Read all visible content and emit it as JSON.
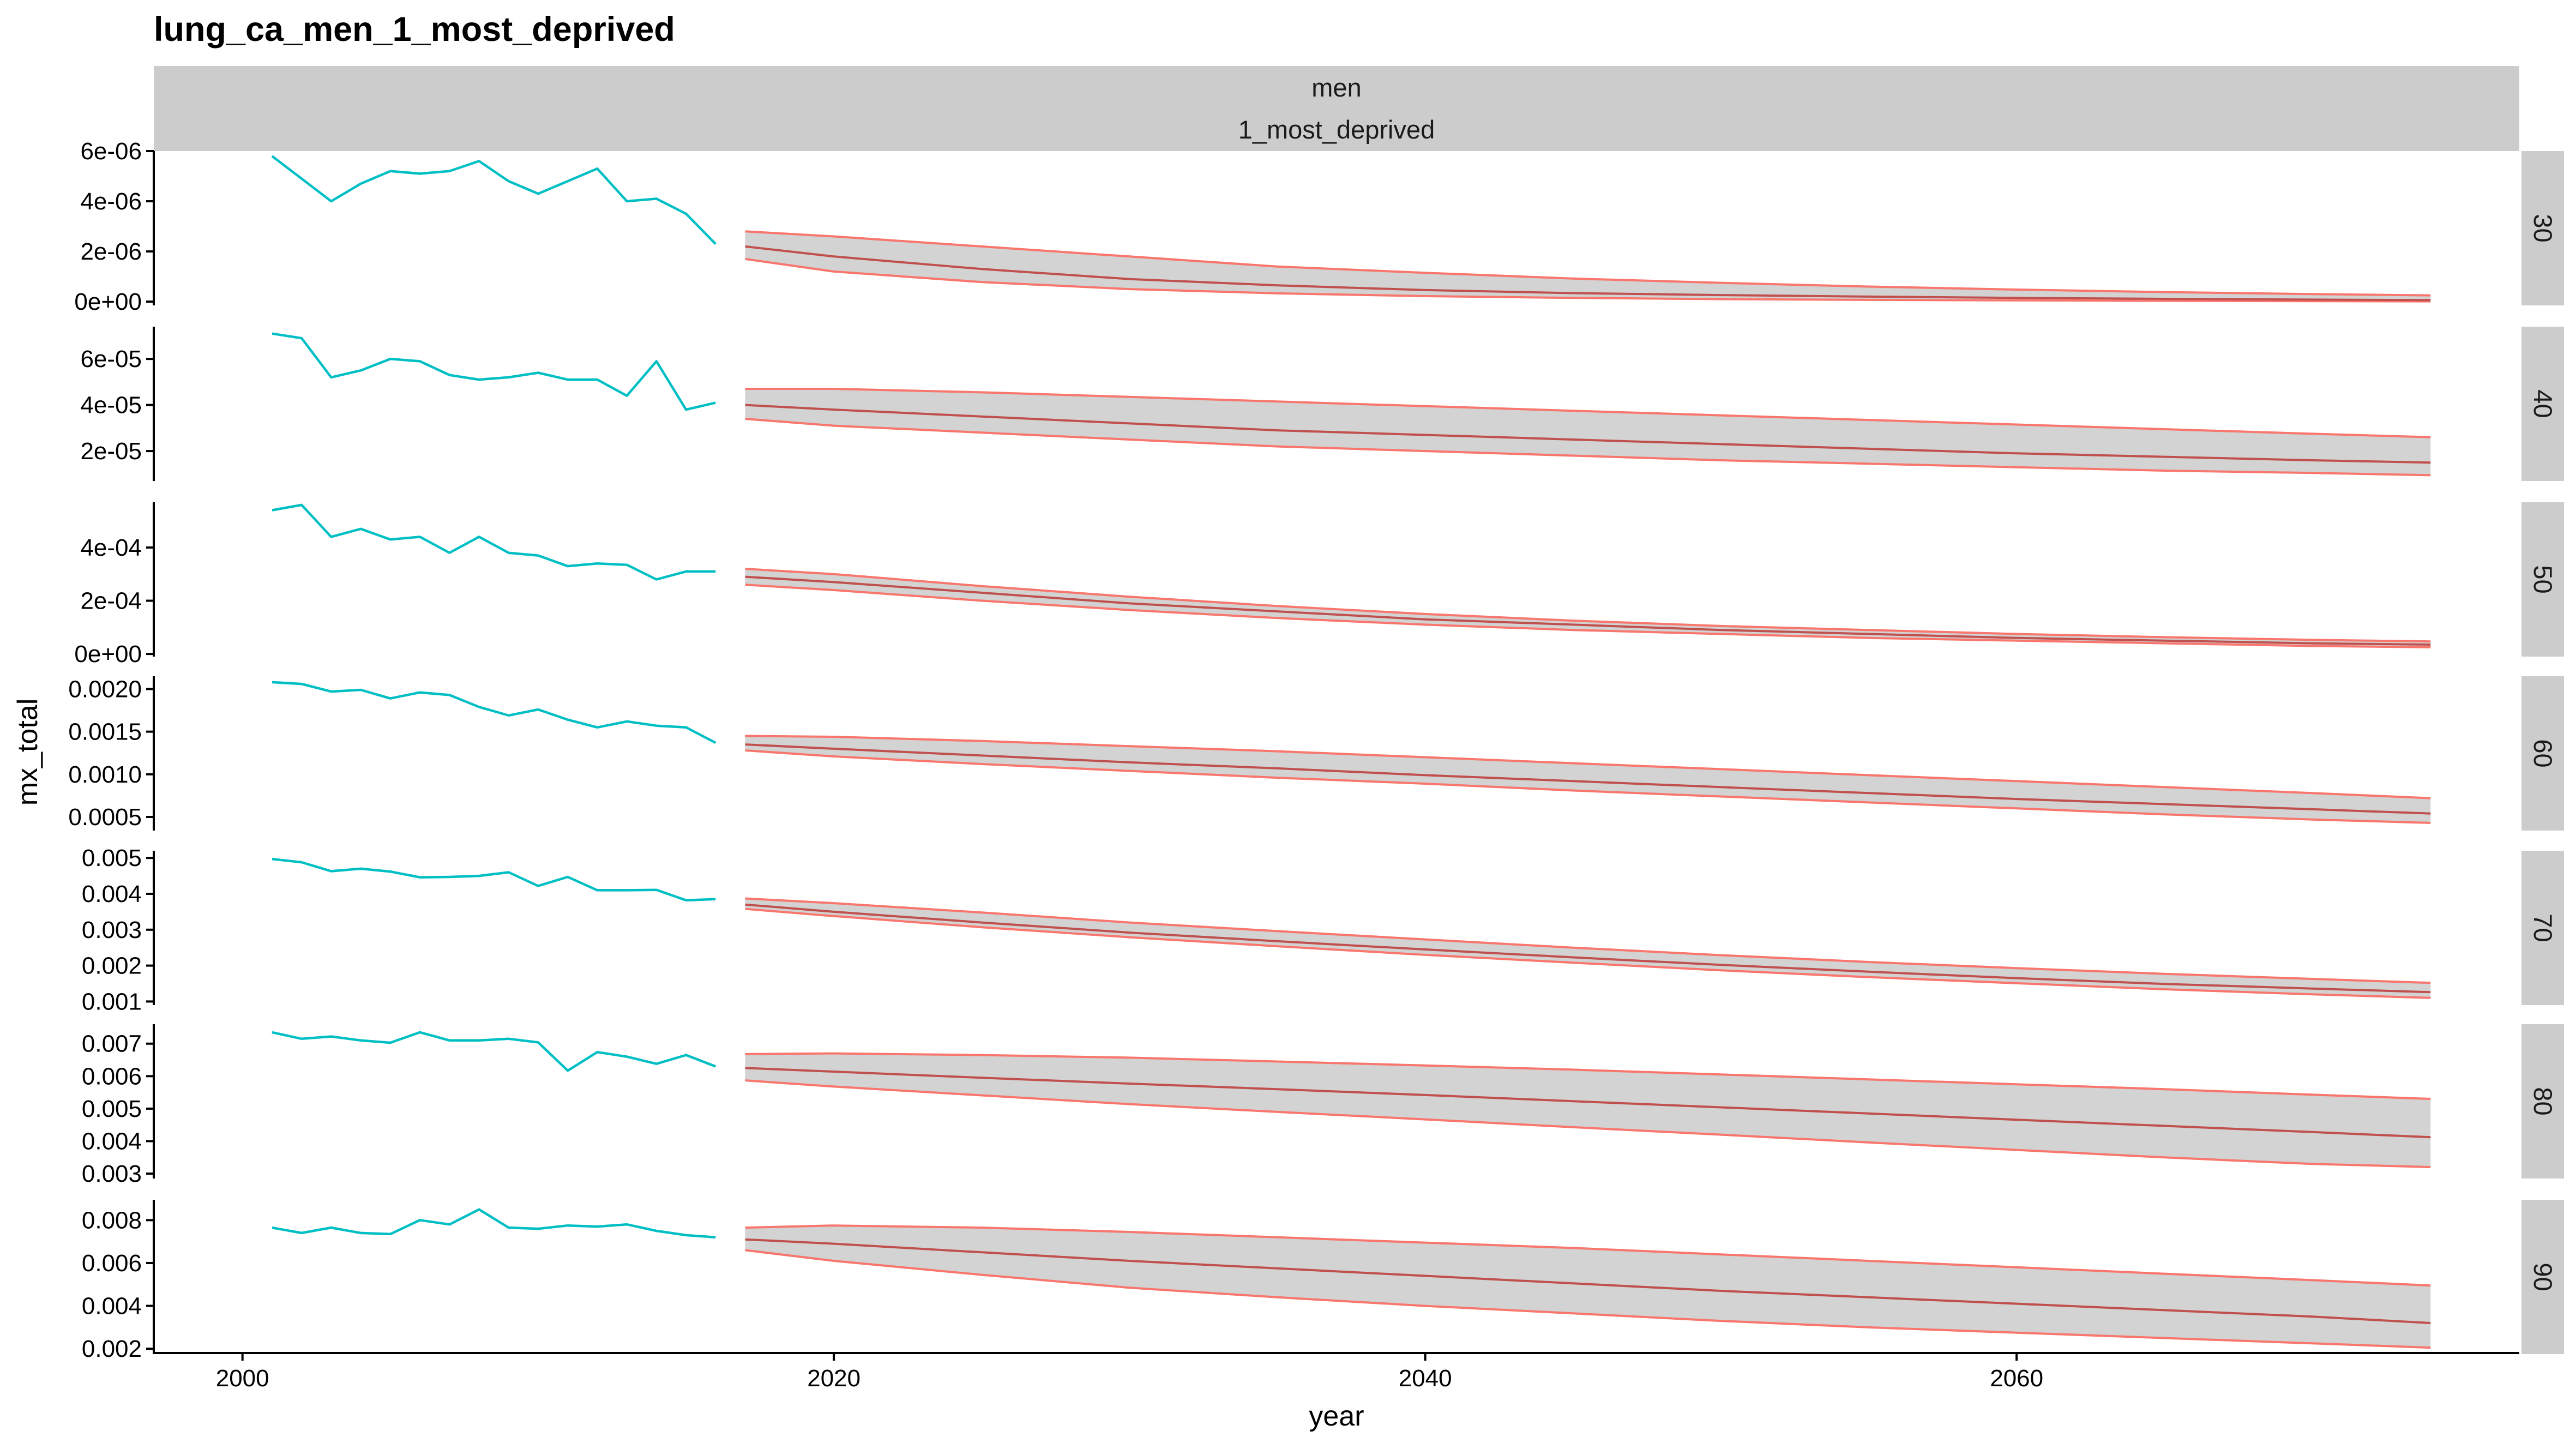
{
  "chart_data": {
    "type": "line",
    "title": "lung_ca_men_1_most_deprived",
    "xlabel": "year",
    "ylabel": "mx_total",
    "strips": [
      "men",
      "1_most_deprived"
    ],
    "xlim": [
      1997,
      2077
    ],
    "x_ticks": [
      2000,
      2020,
      2040,
      2060
    ],
    "x_tick_labels": [
      "2000",
      "2020",
      "2040",
      "2060"
    ],
    "observed_years": [
      2001,
      2002,
      2003,
      2004,
      2005,
      2006,
      2007,
      2008,
      2009,
      2010,
      2011,
      2012,
      2013,
      2014,
      2015,
      2016
    ],
    "forecast_years": [
      2017,
      2020,
      2025,
      2030,
      2035,
      2040,
      2045,
      2050,
      2055,
      2060,
      2065,
      2070,
      2074
    ],
    "observed_color": "#00BFC4",
    "forecast_color": "#F8766D",
    "median_color": "#C0504D",
    "band_color": "#D3D3D3",
    "panels": [
      {
        "label": "30",
        "ylim": [
          -1.5e-07,
          6e-06
        ],
        "y_ticks": [
          0,
          2e-06,
          4e-06,
          6e-06
        ],
        "y_tick_labels": [
          "0e+00",
          "2e-06",
          "4e-06",
          "6e-06"
        ],
        "observed": [
          5.8e-06,
          4.9e-06,
          4e-06,
          4.7e-06,
          5.2e-06,
          5.1e-06,
          5.2e-06,
          5.6e-06,
          4.8e-06,
          4.3e-06,
          4.8e-06,
          5.3e-06,
          4e-06,
          4.1e-06,
          3.5e-06,
          2.3e-06
        ],
        "median": [
          2.2e-06,
          1.8e-06,
          1.3e-06,
          9e-07,
          6.5e-07,
          4.6e-07,
          3.4e-07,
          2.6e-07,
          2e-07,
          1.5e-07,
          1.1e-07,
          8e-08,
          6e-08
        ],
        "lower": [
          1.7e-06,
          1.2e-06,
          7.8e-07,
          5e-07,
          3.3e-07,
          2.2e-07,
          1.5e-07,
          1e-07,
          7e-08,
          5e-08,
          3e-08,
          2e-08,
          1e-08
        ],
        "upper": [
          2.8e-06,
          2.6e-06,
          2.2e-06,
          1.8e-06,
          1.4e-06,
          1.15e-06,
          9.2e-07,
          7.5e-07,
          6e-07,
          4.8e-07,
          3.8e-07,
          3e-07,
          2.5e-07
        ]
      },
      {
        "label": "40",
        "ylim": [
          7e-06,
          7.4e-05
        ],
        "y_ticks": [
          2e-05,
          4e-05,
          6e-05
        ],
        "y_tick_labels": [
          "2e-05",
          "4e-05",
          "6e-05"
        ],
        "observed": [
          7.1e-05,
          6.9e-05,
          5.2e-05,
          5.5e-05,
          6e-05,
          5.9e-05,
          5.3e-05,
          5.1e-05,
          5.2e-05,
          5.4e-05,
          5.1e-05,
          5.1e-05,
          4.4e-05,
          5.9e-05,
          3.8e-05,
          4.1e-05
        ],
        "median": [
          4e-05,
          3.8e-05,
          3.5e-05,
          3.2e-05,
          2.9e-05,
          2.7e-05,
          2.5e-05,
          2.3e-05,
          2.1e-05,
          1.9e-05,
          1.75e-05,
          1.6e-05,
          1.5e-05
        ],
        "lower": [
          3.4e-05,
          3.1e-05,
          2.8e-05,
          2.5e-05,
          2.2e-05,
          2e-05,
          1.8e-05,
          1.6e-05,
          1.45e-05,
          1.3e-05,
          1.15e-05,
          1.05e-05,
          9.5e-06
        ],
        "upper": [
          4.7e-05,
          4.7e-05,
          4.55e-05,
          4.35e-05,
          4.15e-05,
          3.95e-05,
          3.75e-05,
          3.55e-05,
          3.35e-05,
          3.15e-05,
          2.95e-05,
          2.75e-05,
          2.6e-05
        ]
      },
      {
        "label": "50",
        "ylim": [
          -1e-05,
          0.00057
        ],
        "y_ticks": [
          0,
          0.0002,
          0.0004
        ],
        "y_tick_labels": [
          "0e+00",
          "2e-04",
          "4e-04"
        ],
        "observed": [
          0.00054,
          0.00056,
          0.00044,
          0.00047,
          0.00043,
          0.00044,
          0.00038,
          0.00044,
          0.00038,
          0.00037,
          0.00033,
          0.00034,
          0.000335,
          0.00028,
          0.00031,
          0.00031
        ],
        "median": [
          0.00029,
          0.00027,
          0.00023,
          0.00019,
          0.00016,
          0.00013,
          0.00011,
          9e-05,
          7.5e-05,
          6e-05,
          5e-05,
          4e-05,
          3.5e-05
        ],
        "lower": [
          0.00026,
          0.00024,
          0.0002,
          0.000165,
          0.000135,
          0.00011,
          9e-05,
          7.5e-05,
          6e-05,
          5e-05,
          4e-05,
          3e-05,
          2.5e-05
        ],
        "upper": [
          0.00032,
          0.0003,
          0.000255,
          0.000215,
          0.00018,
          0.00015,
          0.000125,
          0.000105,
          9e-05,
          7.5e-05,
          6.3e-05,
          5.3e-05,
          4.7e-05
        ]
      },
      {
        "label": "60",
        "ylim": [
          0.00034,
          0.00215
        ],
        "y_ticks": [
          0.0005,
          0.001,
          0.0015,
          0.002
        ],
        "y_tick_labels": [
          "0.0005",
          "0.0010",
          "0.0015",
          "0.0020"
        ],
        "observed": [
          0.00208,
          0.00206,
          0.00197,
          0.00199,
          0.00189,
          0.00196,
          0.00193,
          0.00179,
          0.00169,
          0.00176,
          0.00164,
          0.00155,
          0.00162,
          0.00157,
          0.00155,
          0.00137
        ],
        "median": [
          0.00135,
          0.0013,
          0.00122,
          0.00114,
          0.00107,
          0.00099,
          0.00092,
          0.00085,
          0.00078,
          0.00071,
          0.00065,
          0.00059,
          0.00054
        ],
        "lower": [
          0.00128,
          0.00121,
          0.00112,
          0.00104,
          0.00096,
          0.00089,
          0.00081,
          0.00074,
          0.00067,
          0.0006,
          0.00053,
          0.00047,
          0.00043
        ],
        "upper": [
          0.00145,
          0.00144,
          0.00139,
          0.00133,
          0.00127,
          0.0012,
          0.00113,
          0.00106,
          0.00099,
          0.00092,
          0.00085,
          0.00078,
          0.00072
        ]
      },
      {
        "label": "70",
        "ylim": [
          0.0009,
          0.0052
        ],
        "y_ticks": [
          0.001,
          0.002,
          0.003,
          0.004,
          0.005
        ],
        "y_tick_labels": [
          "0.001",
          "0.002",
          "0.003",
          "0.004",
          "0.005"
        ],
        "observed": [
          0.00497,
          0.00488,
          0.00463,
          0.0047,
          0.00462,
          0.00446,
          0.00447,
          0.0045,
          0.0046,
          0.00422,
          0.00447,
          0.0041,
          0.0041,
          0.00411,
          0.00382,
          0.00385
        ],
        "median": [
          0.0037,
          0.0035,
          0.0032,
          0.00292,
          0.00268,
          0.00245,
          0.00223,
          0.00202,
          0.00183,
          0.00165,
          0.00149,
          0.00136,
          0.00126
        ],
        "lower": [
          0.00358,
          0.00338,
          0.00307,
          0.00279,
          0.00254,
          0.0023,
          0.00208,
          0.00187,
          0.00168,
          0.00151,
          0.00134,
          0.0012,
          0.0011
        ],
        "upper": [
          0.00387,
          0.00374,
          0.00348,
          0.0032,
          0.00296,
          0.00273,
          0.0025,
          0.00229,
          0.0021,
          0.00193,
          0.00177,
          0.00163,
          0.00152
        ]
      },
      {
        "label": "80",
        "ylim": [
          0.00285,
          0.0076
        ],
        "y_ticks": [
          0.003,
          0.004,
          0.005,
          0.006,
          0.007
        ],
        "y_tick_labels": [
          "0.003",
          "0.004",
          "0.005",
          "0.006",
          "0.007"
        ],
        "observed": [
          0.00735,
          0.00715,
          0.00722,
          0.0071,
          0.00703,
          0.00735,
          0.0071,
          0.0071,
          0.00715,
          0.00704,
          0.00617,
          0.00674,
          0.0066,
          0.00638,
          0.00665,
          0.0063
        ],
        "median": [
          0.00625,
          0.00614,
          0.00595,
          0.00577,
          0.0056,
          0.00542,
          0.00523,
          0.00504,
          0.00485,
          0.00466,
          0.00447,
          0.00428,
          0.00412
        ],
        "lower": [
          0.00587,
          0.00568,
          0.00541,
          0.00514,
          0.0049,
          0.00467,
          0.00443,
          0.0042,
          0.00396,
          0.00373,
          0.0035,
          0.0033,
          0.0032
        ],
        "upper": [
          0.00668,
          0.0067,
          0.00665,
          0.00657,
          0.00645,
          0.00633,
          0.0062,
          0.00605,
          0.0059,
          0.00575,
          0.0056,
          0.00543,
          0.0053
        ]
      },
      {
        "label": "90",
        "ylim": [
          0.00175,
          0.00895
        ],
        "y_ticks": [
          0.002,
          0.004,
          0.006,
          0.008
        ],
        "y_tick_labels": [
          "0.002",
          "0.004",
          "0.006",
          "0.008"
        ],
        "observed": [
          0.00765,
          0.0074,
          0.00765,
          0.0074,
          0.00735,
          0.008,
          0.0078,
          0.0085,
          0.00765,
          0.0076,
          0.00775,
          0.0077,
          0.0078,
          0.0075,
          0.0073,
          0.0072
        ],
        "median": [
          0.0071,
          0.0069,
          0.0065,
          0.0061,
          0.00575,
          0.0054,
          0.00505,
          0.0047,
          0.0044,
          0.0041,
          0.0038,
          0.0035,
          0.0032
        ],
        "lower": [
          0.0066,
          0.0061,
          0.00545,
          0.00485,
          0.0044,
          0.004,
          0.00365,
          0.0033,
          0.003,
          0.00275,
          0.0025,
          0.00225,
          0.00205
        ],
        "upper": [
          0.00765,
          0.00775,
          0.00765,
          0.00745,
          0.0072,
          0.00695,
          0.0067,
          0.0064,
          0.0061,
          0.0058,
          0.0055,
          0.0052,
          0.00495
        ]
      }
    ]
  }
}
